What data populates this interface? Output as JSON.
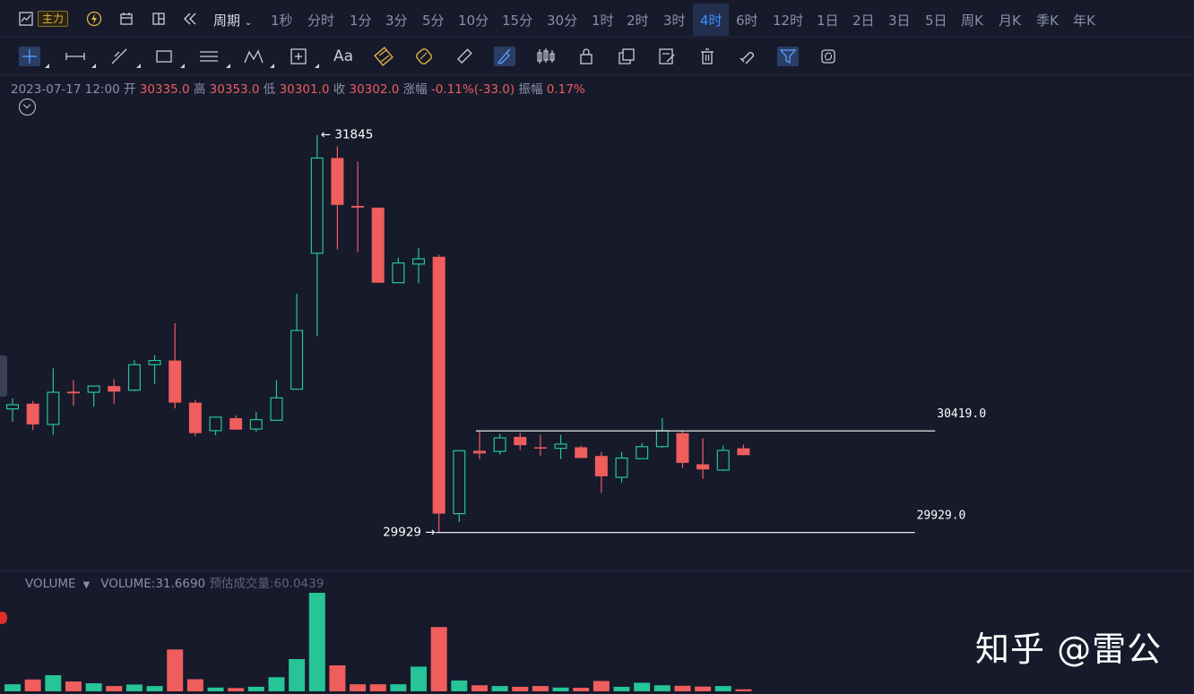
{
  "topbar": {
    "zhuli_label": "主力",
    "period_label": "周期",
    "timeframes": [
      "1秒",
      "分时",
      "1分",
      "3分",
      "5分",
      "10分",
      "15分",
      "30分",
      "1时",
      "2时",
      "3时",
      "4时",
      "6时",
      "12时",
      "1日",
      "2日",
      "3日",
      "5日",
      "周K",
      "月K",
      "季K",
      "年K"
    ],
    "active_timeframe": "4时",
    "icons": [
      "chart-type-icon",
      "lightning-icon",
      "calendar-icon",
      "layout-icon",
      "rewind-icon",
      "chevron-down-icon"
    ]
  },
  "toolbar": {
    "tools": [
      "crosshair-icon",
      "horizontal-line-icon",
      "trend-line-icon",
      "rectangle-icon",
      "parallel-channel-icon",
      "pattern-icon",
      "measure-icon",
      "text-icon",
      "fib-icon",
      "fib-circle-icon",
      "ruler-icon",
      "brush-icon",
      "candles-icon",
      "lock-icon",
      "copy-icon",
      "note-icon",
      "delete-icon",
      "magnet-icon",
      "filter-icon",
      "sync-icon"
    ],
    "text_tool_label": "Aa"
  },
  "info": {
    "datetime": "2023-07-17 12:00",
    "open_label": "开",
    "open": "30335.0",
    "high_label": "高",
    "high": "30353.0",
    "low_label": "低",
    "low": "30301.0",
    "close_label": "收",
    "close": "30302.0",
    "change_label": "涨幅",
    "change": "-0.11%(-33.0)",
    "amplitude_label": "振幅",
    "amplitude": "0.17%"
  },
  "volume_legend": {
    "name": "VOLUME",
    "value_text": "VOLUME:31.6690",
    "estimate_text": "预估成交量:60.0439"
  },
  "watermark": "知乎 @雷公",
  "chart_data": {
    "type": "candlestick",
    "colors": {
      "up": "#26c496",
      "down": "#ef5d5d",
      "background": "#161a2b",
      "line": "#ffffff"
    },
    "ylim": [
      29850,
      31900
    ],
    "annotations": {
      "high_label": "31845",
      "low_label": "29929"
    },
    "price_lines": [
      {
        "label": "30419.0",
        "value": 30419,
        "from_index": 23,
        "to_index": 45
      },
      {
        "label": "29929.0",
        "value": 29929,
        "from_index": 21,
        "to_index": 44
      }
    ],
    "candles": [
      {
        "o": 30525,
        "h": 30575,
        "l": 30463,
        "c": 30545,
        "v": 0.28
      },
      {
        "o": 30550,
        "h": 30563,
        "l": 30423,
        "c": 30450,
        "v": 0.47
      },
      {
        "o": 30450,
        "h": 30720,
        "l": 30400,
        "c": 30605,
        "v": 0.64
      },
      {
        "o": 30608,
        "h": 30663,
        "l": 30540,
        "c": 30600,
        "v": 0.39
      },
      {
        "o": 30605,
        "h": 30630,
        "l": 30535,
        "c": 30635,
        "v": 0.32
      },
      {
        "o": 30635,
        "h": 30668,
        "l": 30550,
        "c": 30608,
        "v": 0.21
      },
      {
        "o": 30615,
        "h": 30760,
        "l": 30610,
        "c": 30738,
        "v": 0.27
      },
      {
        "o": 30738,
        "h": 30783,
        "l": 30645,
        "c": 30758,
        "v": 0.21
      },
      {
        "o": 30758,
        "h": 30938,
        "l": 30527,
        "c": 30555,
        "v": 1.66
      },
      {
        "o": 30555,
        "h": 30568,
        "l": 30393,
        "c": 30408,
        "v": 0.48
      },
      {
        "o": 30420,
        "h": 30488,
        "l": 30398,
        "c": 30485,
        "v": 0.15
      },
      {
        "o": 30480,
        "h": 30493,
        "l": 30425,
        "c": 30425,
        "v": 0.13
      },
      {
        "o": 30428,
        "h": 30510,
        "l": 30415,
        "c": 30473,
        "v": 0.18
      },
      {
        "o": 30470,
        "h": 30663,
        "l": 30470,
        "c": 30578,
        "v": 0.56
      },
      {
        "o": 30620,
        "h": 31080,
        "l": 30620,
        "c": 30903,
        "v": 1.28
      },
      {
        "o": 31275,
        "h": 31845,
        "l": 30875,
        "c": 31734,
        "v": 3.91
      },
      {
        "o": 31734,
        "h": 31790,
        "l": 31293,
        "c": 31508,
        "v": 1.03
      },
      {
        "o": 31503,
        "h": 31718,
        "l": 31280,
        "c": 31495,
        "v": 0.28
      },
      {
        "o": 31495,
        "h": 31495,
        "l": 31133,
        "c": 31133,
        "v": 0.28
      },
      {
        "o": 31133,
        "h": 31253,
        "l": 31133,
        "c": 31228,
        "v": 0.28
      },
      {
        "o": 31223,
        "h": 31300,
        "l": 31130,
        "c": 31248,
        "v": 0.98
      },
      {
        "o": 31258,
        "h": 31268,
        "l": 29929,
        "c": 30020,
        "v": 2.55
      },
      {
        "o": 30020,
        "h": 30320,
        "l": 29980,
        "c": 30323,
        "v": 0.43
      },
      {
        "o": 30323,
        "h": 30419,
        "l": 30283,
        "c": 30310,
        "v": 0.24
      },
      {
        "o": 30320,
        "h": 30405,
        "l": 30305,
        "c": 30385,
        "v": 0.21
      },
      {
        "o": 30390,
        "h": 30410,
        "l": 30325,
        "c": 30350,
        "v": 0.18
      },
      {
        "o": 30340,
        "h": 30400,
        "l": 30298,
        "c": 30335,
        "v": 0.21
      },
      {
        "o": 30335,
        "h": 30400,
        "l": 30283,
        "c": 30355,
        "v": 0.15
      },
      {
        "o": 30340,
        "h": 30348,
        "l": 30288,
        "c": 30288,
        "v": 0.14
      },
      {
        "o": 30298,
        "h": 30318,
        "l": 30120,
        "c": 30200,
        "v": 0.41
      },
      {
        "o": 30195,
        "h": 30318,
        "l": 30170,
        "c": 30288,
        "v": 0.18
      },
      {
        "o": 30285,
        "h": 30360,
        "l": 30285,
        "c": 30343,
        "v": 0.34
      },
      {
        "o": 30343,
        "h": 30480,
        "l": 30338,
        "c": 30420,
        "v": 0.24
      },
      {
        "o": 30408,
        "h": 30418,
        "l": 30240,
        "c": 30265,
        "v": 0.22
      },
      {
        "o": 30258,
        "h": 30383,
        "l": 30188,
        "c": 30233,
        "v": 0.19
      },
      {
        "o": 30230,
        "h": 30348,
        "l": 30225,
        "c": 30325,
        "v": 0.21
      },
      {
        "o": 30335,
        "h": 30353,
        "l": 30301,
        "c": 30302,
        "v": 0.08
      }
    ]
  }
}
